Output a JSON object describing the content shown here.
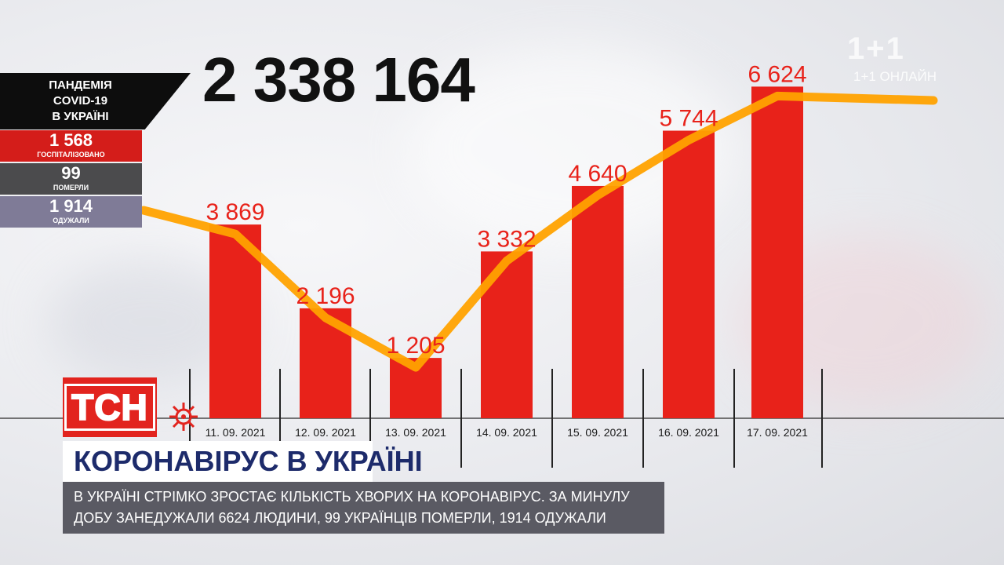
{
  "total_cases": "2 338 164",
  "panel": {
    "title": "ПАНДЕМІЯ\nCOVID-19\nВ УКРАЇНІ",
    "hospitalized": {
      "value": "1 568",
      "label": "ГОСПІТАЛІЗОВАНО"
    },
    "deaths": {
      "value": "99",
      "label": "ПОМЕРЛИ"
    },
    "recovered": {
      "value": "1 914",
      "label": "ОДУЖАЛИ"
    }
  },
  "chart_data": {
    "type": "bar",
    "categories": [
      "11. 09. 2021",
      "12. 09. 2021",
      "13. 09. 2021",
      "14. 09. 2021",
      "15. 09. 2021",
      "16. 09. 2021",
      "17. 09. 2021"
    ],
    "values": [
      3869,
      2196,
      1205,
      3332,
      4640,
      5744,
      6624
    ],
    "value_labels": [
      "3 869",
      "2 196",
      "1 205",
      "3 332",
      "4 640",
      "5 744",
      "6 624"
    ],
    "trend_line": true,
    "ylim": [
      0,
      7100
    ],
    "colors": {
      "bars": "#e8221a",
      "trend": "#ffa200",
      "labels": "#e8221a"
    }
  },
  "branding": {
    "logo": "ТСН",
    "watermark": "1+1",
    "watermark_sub": "1+1 ОНЛАЙН"
  },
  "headline": "КОРОНАВІРУС В УКРАЇНІ",
  "caption": "В УКРАЇНІ СТРІМКО ЗРОСТАЄ КІЛЬКІСТЬ ХВОРИХ НА КОРОНАВІРУС. ЗА МИНУЛУ ДОБУ ЗАНЕДУЖАЛИ 6624 ЛЮДИНИ, 99 УКРАЇНЦІВ ПОМЕРЛИ, 1914 ОДУЖАЛИ"
}
